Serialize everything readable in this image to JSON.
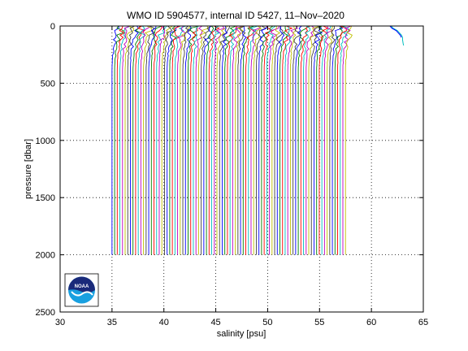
{
  "chart_data": {
    "type": "line",
    "title": "WMO ID 5904577, internal ID 5427, 11–Nov–2020",
    "xlabel": "salinity [psu]",
    "ylabel": "pressure [dbar]",
    "xlim": [
      30,
      65
    ],
    "ylim": [
      2500,
      0
    ],
    "y_reversed": true,
    "grid": true,
    "grid_style": "dotted",
    "xticks": [
      30,
      35,
      40,
      45,
      50,
      55,
      60,
      65
    ],
    "yticks": [
      0,
      500,
      1000,
      1500,
      2000,
      2500
    ],
    "xtick_labels": [
      "30",
      "35",
      "40",
      "45",
      "50",
      "55",
      "60",
      "65"
    ],
    "ytick_labels": [
      "0",
      "500",
      "1000",
      "1500",
      "2000",
      "2500"
    ],
    "profile_description": "Repeated profiles offset horizontally; each series starts near 35 psu at depth and is shifted for display",
    "profile_colors": [
      "#0000ff",
      "#008000",
      "#ff0000",
      "#00bfbf",
      "#bf00bf",
      "#bfbf00",
      "#404040"
    ],
    "profiles": {
      "count": 90,
      "first_offset_salinity": 35.0,
      "last_offset_salinity": 57.5,
      "max_pressure": 2000,
      "deep_value_psu": 35.0,
      "surface_value_psu": 35.3
    },
    "outlier_profile": {
      "pressure": [
        0,
        20,
        40,
        60,
        80,
        100,
        120,
        150,
        170
      ],
      "salinity": [
        61.9,
        62.1,
        62.5,
        62.7,
        62.9,
        63.0,
        63.0,
        63.05,
        63.1
      ]
    },
    "logo": "NOAA"
  }
}
